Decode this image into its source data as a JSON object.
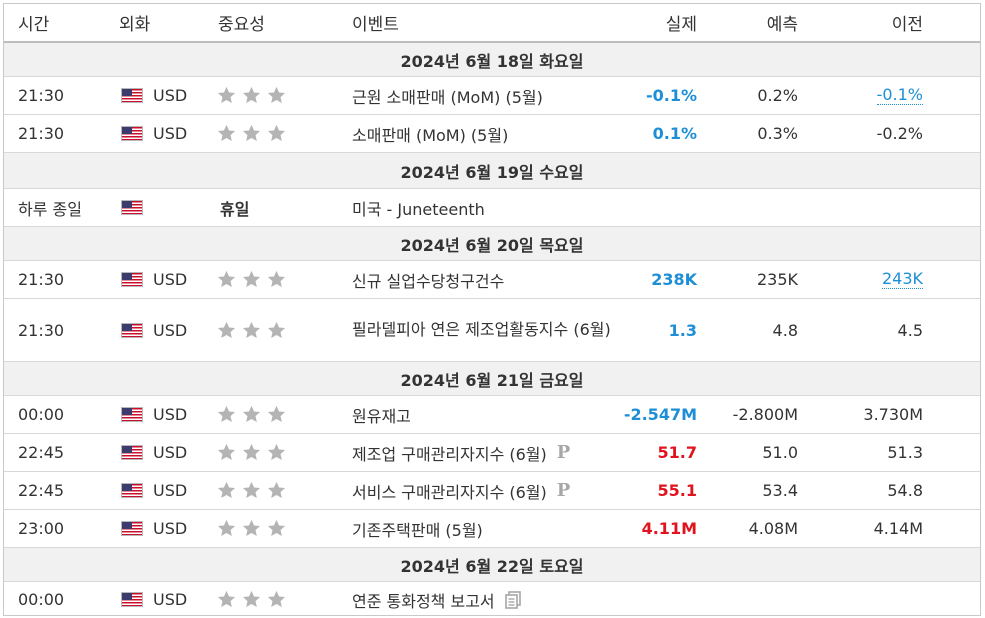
{
  "headers": {
    "time": "시간",
    "currency": "외화",
    "importance": "중요성",
    "event": "이벤트",
    "actual": "실제",
    "forecast": "예측",
    "previous": "이전"
  },
  "colors": {
    "positive": "#1e8fd6",
    "negative": "#e0131e",
    "star": "#b4b4b4",
    "date_bg": "#f1f1f1"
  },
  "sections": [
    {
      "date": "2024년 6월 18일 화요일",
      "events": [
        {
          "time": "21:30",
          "currency": "USD",
          "importance": 3,
          "event": "근원 소매판매 (MoM) (5월)",
          "actual": "-0.1%",
          "actual_color": "blue",
          "forecast": "0.2%",
          "previous": "-0.1%",
          "previous_link": true
        },
        {
          "time": "21:30",
          "currency": "USD",
          "importance": 3,
          "event": "소매판매 (MoM) (5월)",
          "actual": "0.1%",
          "actual_color": "blue",
          "forecast": "0.3%",
          "previous": "-0.2%",
          "previous_link": false
        }
      ]
    },
    {
      "date": "2024년 6월 19일 수요일",
      "holiday": {
        "time": "하루 종일",
        "label": "휴일",
        "event": "미국 - Juneteenth"
      }
    },
    {
      "date": "2024년 6월 20일 목요일",
      "events": [
        {
          "time": "21:30",
          "currency": "USD",
          "importance": 3,
          "event": "신규 실업수당청구건수",
          "actual": "238K",
          "actual_color": "blue",
          "forecast": "235K",
          "previous": "243K",
          "previous_link": true
        },
        {
          "time": "21:30",
          "currency": "USD",
          "importance": 3,
          "event": "필라델피아 연은 제조업활동지수 (6월)",
          "actual": "1.3",
          "actual_color": "blue",
          "forecast": "4.8",
          "previous": "4.5",
          "previous_link": false
        }
      ]
    },
    {
      "date": "2024년 6월 21일 금요일",
      "events": [
        {
          "time": "00:00",
          "currency": "USD",
          "importance": 3,
          "event": "원유재고",
          "actual": "-2.547M",
          "actual_color": "blue",
          "forecast": "-2.800M",
          "previous": "3.730M",
          "previous_link": false
        },
        {
          "time": "22:45",
          "currency": "USD",
          "importance": 3,
          "event": "제조업 구매관리자지수 (6월)",
          "preliminary": true,
          "actual": "51.7",
          "actual_color": "red",
          "forecast": "51.0",
          "previous": "51.3",
          "previous_link": false
        },
        {
          "time": "22:45",
          "currency": "USD",
          "importance": 3,
          "event": "서비스 구매관리자지수 (6월)",
          "preliminary": true,
          "actual": "55.1",
          "actual_color": "red",
          "forecast": "53.4",
          "previous": "54.8",
          "previous_link": false
        },
        {
          "time": "23:00",
          "currency": "USD",
          "importance": 3,
          "event": "기존주택판매 (5월)",
          "actual": "4.11M",
          "actual_color": "red",
          "forecast": "4.08M",
          "previous": "4.14M",
          "previous_link": false
        }
      ]
    },
    {
      "date": "2024년 6월 22일 토요일",
      "events": [
        {
          "time": "00:00",
          "currency": "USD",
          "importance": 3,
          "event": "연준 통화정책 보고서",
          "report_icon": true,
          "actual": "",
          "forecast": "",
          "previous": ""
        }
      ]
    }
  ],
  "icons": {
    "flag": "us-flag-icon",
    "star": "star-icon",
    "preliminary": "preliminary-p-icon",
    "report": "document-icon"
  },
  "labels": {
    "preliminary_mark": "P"
  }
}
